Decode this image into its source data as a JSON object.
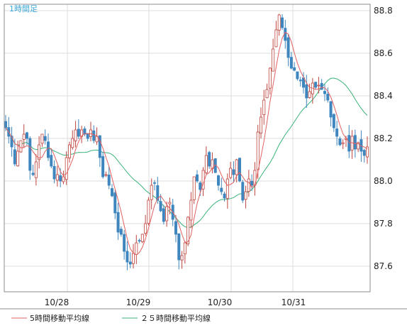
{
  "chart_data": {
    "type": "candlestick",
    "title": "1時間足",
    "x_ticks": [
      "10/28",
      "10/29",
      "10/30",
      "10/31"
    ],
    "y_ticks": [
      87.6,
      87.8,
      88.0,
      88.2,
      88.4,
      88.6,
      88.8
    ],
    "ylim": [
      87.48,
      88.83
    ],
    "grid": true,
    "candle_colors": {
      "up": "#c0453f",
      "down": "#3f86bf"
    },
    "series": [
      {
        "name": "5時間移動平均線",
        "color": "#e06060"
      },
      {
        "name": "２５時間移動平均線",
        "color": "#3ab37a"
      }
    ],
    "close": [
      88.25,
      88.21,
      88.16,
      88.08,
      88.14,
      88.19,
      88.22,
      88.2,
      88.05,
      88.03,
      88.09,
      88.17,
      88.22,
      88.19,
      88.11,
      88.07,
      88.01,
      88.03,
      88.0,
      88.02,
      88.11,
      88.17,
      88.2,
      88.24,
      88.21,
      88.24,
      88.22,
      88.2,
      88.24,
      88.19,
      88.21,
      88.11,
      88.02,
      88.03,
      87.98,
      87.93,
      87.85,
      87.76,
      87.75,
      87.67,
      87.62,
      87.61,
      87.66,
      87.71,
      87.72,
      87.75,
      87.8,
      87.91,
      87.98,
      87.99,
      87.91,
      87.86,
      87.81,
      87.88,
      87.9,
      87.82,
      87.75,
      87.63,
      87.65,
      87.71,
      87.83,
      87.91,
      88.02,
      88.0,
      87.96,
      88.05,
      88.12,
      88.07,
      88.1,
      88.04,
      87.98,
      87.95,
      87.92,
      88.01,
      88.06,
      88.03,
      88.1,
      88.0,
      87.91,
      87.95,
      88.01,
      87.98,
      88.05,
      88.23,
      88.3,
      88.38,
      88.43,
      88.53,
      88.62,
      88.71,
      88.78,
      88.72,
      88.66,
      88.58,
      88.53,
      88.52,
      88.48,
      88.47,
      88.44,
      88.39,
      88.42,
      88.46,
      88.44,
      88.45,
      88.43,
      88.41,
      88.38,
      88.3,
      88.25,
      88.21,
      88.17,
      88.18,
      88.2,
      88.14,
      88.21,
      88.15,
      88.18,
      88.14,
      88.12,
      88.16
    ]
  },
  "legend": [
    {
      "label": "5時間移動平均線",
      "color": "#e06060"
    },
    {
      "label": "２５時間移動平均線",
      "color": "#3ab37a"
    }
  ]
}
